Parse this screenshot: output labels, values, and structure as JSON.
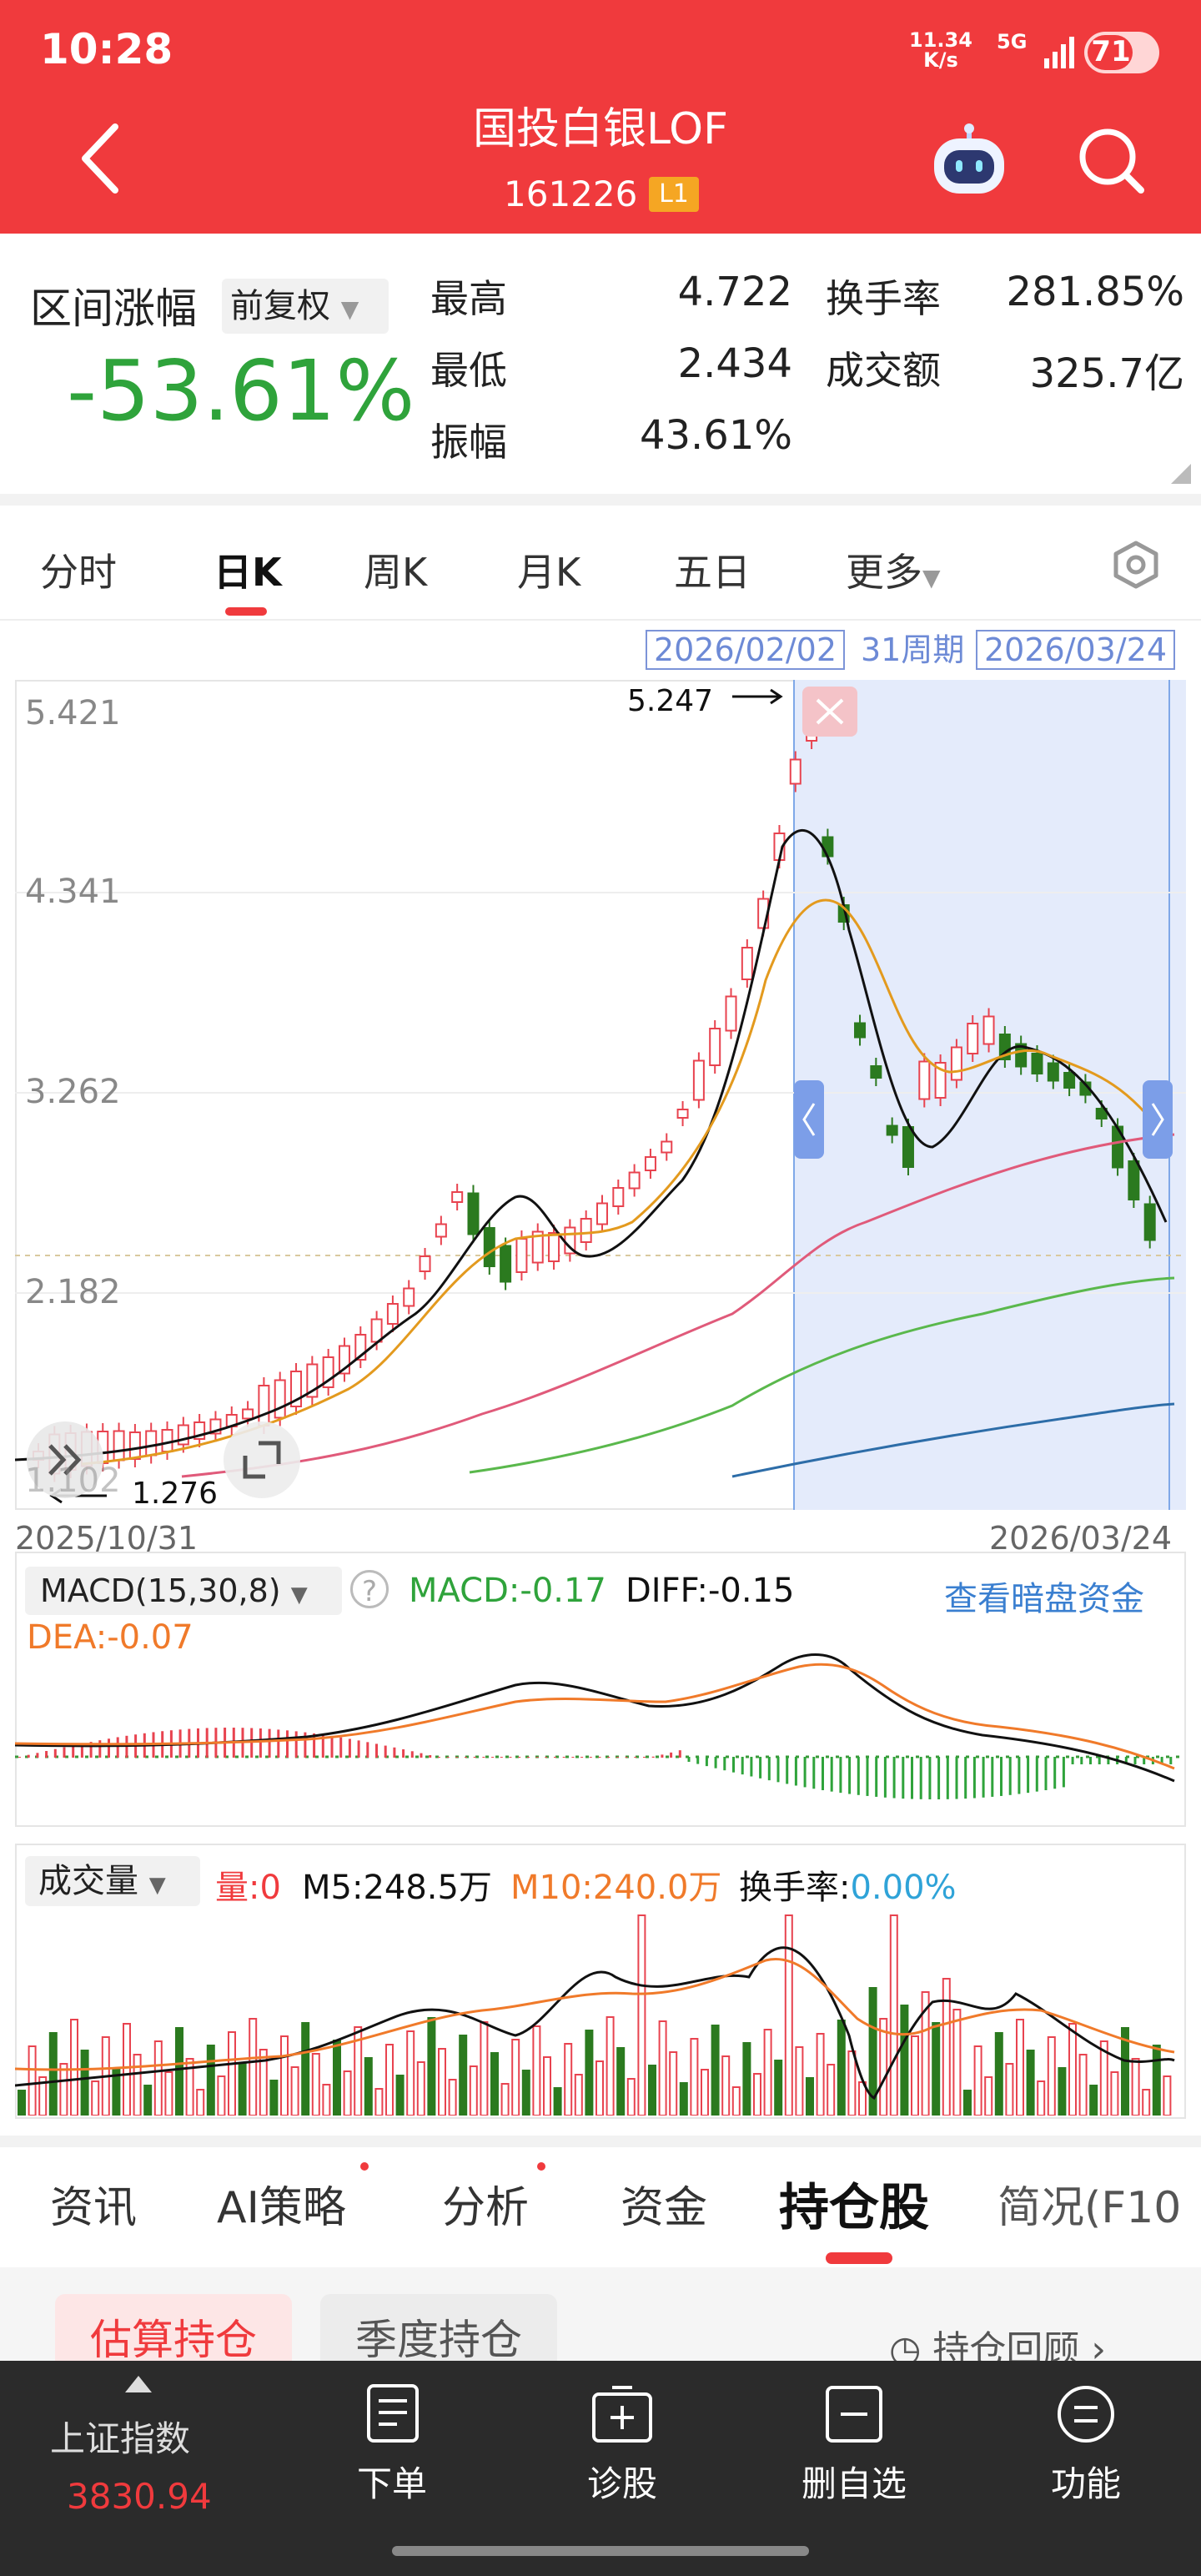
{
  "status": {
    "time": "10:28",
    "net_speed_value": "11.34",
    "net_speed_unit": "K/s",
    "net_type": "5G",
    "battery": "71"
  },
  "header": {
    "title": "国投白银LOF",
    "code": "161226",
    "level_badge": "L1"
  },
  "stats": {
    "range_label": "区间涨幅",
    "adjust_option": "前复权",
    "range_value": "-53.61%",
    "high_label": "最高",
    "high_value": "4.722",
    "low_label": "最低",
    "low_value": "2.434",
    "amplitude_label": "振幅",
    "amplitude_value": "43.61%",
    "turnover_label": "换手率",
    "turnover_value": "281.85%",
    "amount_label": "成交额",
    "amount_value": "325.7亿"
  },
  "tabs": [
    "分时",
    "日K",
    "周K",
    "月K",
    "五日",
    "更多"
  ],
  "active_tab": "日K",
  "range_selection": {
    "start": "2026/02/02",
    "period": "31周期",
    "end": "2026/03/24"
  },
  "kline": {
    "y_labels": [
      "5.421",
      "4.341",
      "3.262",
      "2.182",
      "1.102"
    ],
    "max_marker": "5.247",
    "min_marker": "1.276",
    "x_start": "2025/10/31",
    "x_end": "2026/03/24"
  },
  "macd": {
    "select_label": "MACD(15,30,8)",
    "help": "?",
    "macd_text": "MACD:-0.17",
    "diff_text": "DIFF:-0.15",
    "dea_text": "DEA:-0.07",
    "dark_pool_link": "查看暗盘资金"
  },
  "volume": {
    "select_label": "成交量",
    "vol_text": "量:0",
    "m5_text": "M5:248.5万",
    "m10_text": "M10:240.0万",
    "turnover_label": "换手率:",
    "turnover_value": "0.00%"
  },
  "lower_tabs": [
    "资讯",
    "AI策略",
    "分析",
    "资金",
    "持仓股",
    "简况(F10"
  ],
  "active_lower_tab": "持仓股",
  "holdings": {
    "estimate_button": "估算持仓",
    "quarter_button": "季度持仓",
    "review_link": "持仓回顾"
  },
  "bottom_nav": {
    "index_name": "上证指数",
    "index_value": "3830.94",
    "order": "下单",
    "diagnose": "诊股",
    "remove_watch": "删自选",
    "functions": "功能"
  },
  "colors": {
    "brand_red": "#f03a3d",
    "down_green": "#2fa33b",
    "selection_blue": "#6d8ad6"
  }
}
